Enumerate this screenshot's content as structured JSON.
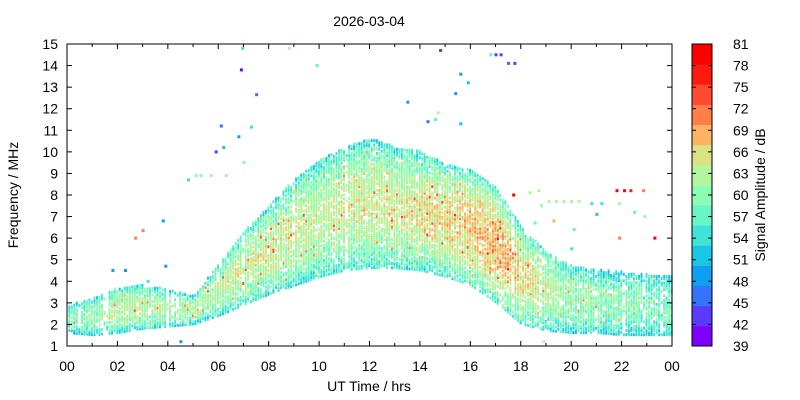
{
  "chart_data": {
    "type": "heatmap",
    "title": "2026-03-04",
    "xlabel": "UT Time / hrs",
    "ylabel": "Frequency / MHz",
    "colorbar_label": "Signal Amplitude / dB",
    "xlim": [
      0,
      24
    ],
    "ylim": [
      1,
      15
    ],
    "x_ticks": [
      "00",
      "02",
      "04",
      "06",
      "08",
      "10",
      "12",
      "14",
      "16",
      "18",
      "20",
      "22",
      "00"
    ],
    "y_ticks": [
      "1",
      "2",
      "3",
      "4",
      "5",
      "6",
      "7",
      "8",
      "9",
      "10",
      "11",
      "12",
      "13",
      "14",
      "15"
    ],
    "colorbar_ticks": [
      "39",
      "42",
      "45",
      "48",
      "51",
      "54",
      "57",
      "60",
      "63",
      "66",
      "69",
      "72",
      "75",
      "78",
      "81"
    ],
    "colorbar_range": [
      39,
      81
    ],
    "colormap": [
      "#7f00ff",
      "#5a3bfe",
      "#3473fa",
      "#0e9ef2",
      "#1ac6e6",
      "#3fe3d8",
      "#66f6c8",
      "#8cfeb3",
      "#b3f69e",
      "#d9e384",
      "#ffb360",
      "#ff7f4a",
      "#ff4a30",
      "#ff1a10",
      "#ff0000"
    ],
    "grid": false,
    "legend": "colorbar-right",
    "profile": {
      "hours": [
        0,
        1,
        2,
        3,
        4,
        5,
        6,
        7,
        8,
        9,
        10,
        11,
        12,
        13,
        14,
        15,
        16,
        17,
        18,
        19,
        20,
        21,
        22,
        23,
        24
      ],
      "low_MHz": [
        1.6,
        1.5,
        1.6,
        1.8,
        1.9,
        2.0,
        2.4,
        2.9,
        3.4,
        3.8,
        4.2,
        4.5,
        4.6,
        4.6,
        4.5,
        4.2,
        3.8,
        3.0,
        2.0,
        1.7,
        1.6,
        1.6,
        1.5,
        1.5,
        1.5
      ],
      "high_MHz": [
        2.9,
        3.2,
        3.7,
        3.8,
        3.6,
        3.3,
        4.8,
        6.3,
        7.5,
        8.7,
        9.6,
        10.2,
        10.6,
        10.2,
        10.0,
        9.4,
        9.2,
        8.3,
        6.5,
        5.3,
        4.7,
        4.5,
        4.4,
        4.3,
        4.2
      ],
      "peak_dB": [
        58,
        60,
        62,
        62,
        61,
        61,
        62,
        63,
        63,
        63,
        62,
        63,
        63,
        63,
        64,
        65,
        66,
        67,
        65,
        62,
        60,
        59,
        59,
        58,
        58
      ]
    },
    "outliers": [
      {
        "t": 6.95,
        "f": 14.8,
        "dB": 54
      },
      {
        "t": 6.9,
        "f": 13.8,
        "dB": 40
      },
      {
        "t": 7.5,
        "f": 12.65,
        "dB": 45
      },
      {
        "t": 6.1,
        "f": 11.2,
        "dB": 45
      },
      {
        "t": 7.3,
        "f": 11.15,
        "dB": 54
      },
      {
        "t": 6.8,
        "f": 10.7,
        "dB": 50
      },
      {
        "t": 5.9,
        "f": 10.0,
        "dB": 42
      },
      {
        "t": 6.2,
        "f": 10.2,
        "dB": 51
      },
      {
        "t": 7.0,
        "f": 9.5,
        "dB": 60
      },
      {
        "t": 4.8,
        "f": 8.7,
        "dB": 55
      },
      {
        "t": 5.1,
        "f": 8.9,
        "dB": 59
      },
      {
        "t": 5.3,
        "f": 8.9,
        "dB": 60
      },
      {
        "t": 5.7,
        "f": 8.9,
        "dB": 62
      },
      {
        "t": 6.3,
        "f": 8.9,
        "dB": 63
      },
      {
        "t": 8.8,
        "f": 14.8,
        "dB": 62
      },
      {
        "t": 9.9,
        "f": 14.0,
        "dB": 57
      },
      {
        "t": 2.7,
        "f": 6.0,
        "dB": 70
      },
      {
        "t": 3.0,
        "f": 6.35,
        "dB": 71
      },
      {
        "t": 3.8,
        "f": 6.8,
        "dB": 48
      },
      {
        "t": 3.2,
        "f": 4.0,
        "dB": 55
      },
      {
        "t": 3.9,
        "f": 4.7,
        "dB": 50
      },
      {
        "t": 1.8,
        "f": 4.5,
        "dB": 48
      },
      {
        "t": 2.3,
        "f": 4.5,
        "dB": 49
      },
      {
        "t": 4.5,
        "f": 1.2,
        "dB": 48
      },
      {
        "t": 14.8,
        "f": 14.7,
        "dB": 42
      },
      {
        "t": 15.6,
        "f": 13.6,
        "dB": 48
      },
      {
        "t": 15.9,
        "f": 13.2,
        "dB": 52
      },
      {
        "t": 15.4,
        "f": 12.7,
        "dB": 50
      },
      {
        "t": 13.5,
        "f": 12.3,
        "dB": 48
      },
      {
        "t": 14.3,
        "f": 11.4,
        "dB": 47
      },
      {
        "t": 14.6,
        "f": 11.5,
        "dB": 56
      },
      {
        "t": 14.7,
        "f": 11.8,
        "dB": 62
      },
      {
        "t": 15.6,
        "f": 11.3,
        "dB": 52
      },
      {
        "t": 16.8,
        "f": 14.5,
        "dB": 57
      },
      {
        "t": 17.0,
        "f": 14.5,
        "dB": 43
      },
      {
        "t": 17.2,
        "f": 14.5,
        "dB": 42
      },
      {
        "t": 17.5,
        "f": 14.1,
        "dB": 46
      },
      {
        "t": 17.75,
        "f": 14.1,
        "dB": 44
      },
      {
        "t": 17.7,
        "f": 8.0,
        "dB": 80
      },
      {
        "t": 18.35,
        "f": 8.1,
        "dB": 63
      },
      {
        "t": 18.7,
        "f": 8.2,
        "dB": 62
      },
      {
        "t": 18.55,
        "f": 6.7,
        "dB": 58
      },
      {
        "t": 18.8,
        "f": 7.5,
        "dB": 60
      },
      {
        "t": 19.1,
        "f": 7.7,
        "dB": 62
      },
      {
        "t": 19.4,
        "f": 7.7,
        "dB": 63
      },
      {
        "t": 19.7,
        "f": 7.7,
        "dB": 64
      },
      {
        "t": 20.0,
        "f": 7.7,
        "dB": 63
      },
      {
        "t": 20.3,
        "f": 7.7,
        "dB": 62
      },
      {
        "t": 20.8,
        "f": 7.6,
        "dB": 54
      },
      {
        "t": 21.2,
        "f": 7.6,
        "dB": 55
      },
      {
        "t": 21.0,
        "f": 7.1,
        "dB": 52
      },
      {
        "t": 21.9,
        "f": 7.6,
        "dB": 62
      },
      {
        "t": 22.5,
        "f": 7.2,
        "dB": 56
      },
      {
        "t": 22.9,
        "f": 7.0,
        "dB": 60
      },
      {
        "t": 21.8,
        "f": 8.2,
        "dB": 79
      },
      {
        "t": 22.1,
        "f": 8.2,
        "dB": 80
      },
      {
        "t": 22.35,
        "f": 8.2,
        "dB": 78
      },
      {
        "t": 22.85,
        "f": 8.2,
        "dB": 72
      },
      {
        "t": 21.9,
        "f": 6.0,
        "dB": 70
      },
      {
        "t": 23.3,
        "f": 6.0,
        "dB": 80
      },
      {
        "t": 19.3,
        "f": 6.8,
        "dB": 69
      },
      {
        "t": 20.1,
        "f": 6.4,
        "dB": 56
      },
      {
        "t": 20.0,
        "f": 5.5,
        "dB": 55
      },
      {
        "t": 18.9,
        "f": 1.2,
        "dB": 63
      }
    ]
  }
}
